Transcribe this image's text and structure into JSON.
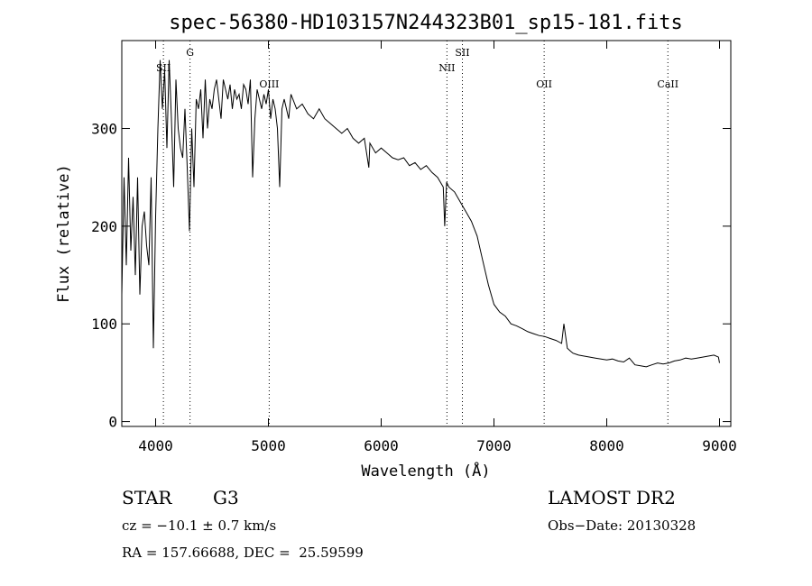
{
  "chart_data": {
    "type": "line",
    "title": "spec-56380-HD103157N244323B01_sp15-181.fits",
    "xlabel": "Wavelength (Å)",
    "ylabel": "Flux (relative)",
    "xlim": [
      3700,
      9100
    ],
    "ylim": [
      -5,
      390
    ],
    "xticks": [
      4000,
      5000,
      6000,
      7000,
      8000,
      9000
    ],
    "yticks": [
      0,
      100,
      200,
      300
    ],
    "grid": false,
    "series": [
      {
        "x": [
          3700,
          3720,
          3740,
          3760,
          3780,
          3800,
          3820,
          3840,
          3860,
          3880,
          3900,
          3920,
          3940,
          3960,
          3980,
          4000,
          4020,
          4040,
          4060,
          4080,
          4100,
          4120,
          4140,
          4160,
          4180,
          4200,
          4220,
          4240,
          4260,
          4280,
          4300,
          4320,
          4340,
          4360,
          4380,
          4400,
          4420,
          4440,
          4460,
          4480,
          4500,
          4520,
          4540,
          4560,
          4580,
          4600,
          4620,
          4640,
          4660,
          4680,
          4700,
          4720,
          4740,
          4760,
          4780,
          4800,
          4820,
          4840,
          4860,
          4880,
          4900,
          4920,
          4940,
          4960,
          4980,
          5000,
          5020,
          5040,
          5060,
          5080,
          5100,
          5120,
          5140,
          5160,
          5180,
          5200,
          5250,
          5300,
          5350,
          5400,
          5450,
          5500,
          5550,
          5600,
          5650,
          5700,
          5750,
          5800,
          5850,
          5890,
          5900,
          5950,
          6000,
          6050,
          6100,
          6150,
          6200,
          6250,
          6300,
          6350,
          6400,
          6450,
          6500,
          6550,
          6563,
          6580,
          6600,
          6650,
          6700,
          6750,
          6800,
          6850,
          6900,
          6950,
          7000,
          7050,
          7100,
          7150,
          7200,
          7250,
          7300,
          7350,
          7400,
          7450,
          7500,
          7550,
          7600,
          7620,
          7650,
          7680,
          7700,
          7750,
          7800,
          7850,
          7900,
          7950,
          8000,
          8050,
          8100,
          8150,
          8200,
          8250,
          8300,
          8350,
          8400,
          8450,
          8500,
          8550,
          8600,
          8650,
          8700,
          8750,
          8800,
          8850,
          8900,
          8950,
          8990,
          9000
        ],
        "y": [
          130,
          250,
          160,
          270,
          175,
          230,
          150,
          250,
          130,
          200,
          215,
          180,
          160,
          250,
          75,
          210,
          300,
          370,
          320,
          360,
          280,
          370,
          310,
          240,
          350,
          300,
          280,
          270,
          320,
          260,
          195,
          300,
          240,
          330,
          320,
          340,
          290,
          350,
          300,
          330,
          320,
          340,
          350,
          330,
          310,
          350,
          340,
          330,
          345,
          320,
          340,
          330,
          335,
          320,
          345,
          340,
          325,
          350,
          250,
          310,
          340,
          330,
          320,
          335,
          325,
          340,
          310,
          330,
          320,
          300,
          240,
          320,
          330,
          320,
          310,
          335,
          320,
          325,
          315,
          310,
          320,
          310,
          305,
          300,
          295,
          300,
          290,
          285,
          290,
          260,
          285,
          275,
          280,
          275,
          270,
          268,
          270,
          262,
          265,
          258,
          262,
          255,
          250,
          240,
          200,
          245,
          240,
          235,
          225,
          215,
          205,
          190,
          165,
          140,
          120,
          112,
          108,
          100,
          98,
          95,
          92,
          90,
          88,
          87,
          85,
          83,
          80,
          100,
          75,
          72,
          70,
          68,
          67,
          66,
          65,
          64,
          63,
          64,
          62,
          61,
          65,
          58,
          57,
          56,
          58,
          60,
          59,
          60,
          62,
          63,
          65,
          64,
          65,
          66,
          67,
          68,
          66,
          60
        ]
      }
    ],
    "annotations": [
      {
        "label": "SII",
        "x": 4069
      },
      {
        "label": "G",
        "x": 4305
      },
      {
        "label": "OIII",
        "x": 5007
      },
      {
        "label": "NII",
        "x": 6583
      },
      {
        "label": "SII",
        "x": 6720
      },
      {
        "label": "OII",
        "x": 7445
      },
      {
        "label": "CaII",
        "x": 8542
      }
    ],
    "reference_lines_x": [
      4069,
      4305,
      5007,
      6583,
      6720,
      7445,
      8542
    ]
  },
  "info": {
    "class_label": "STAR",
    "subclass": "G3",
    "survey": "LAMOST DR2",
    "cz": "cz = −10.1 ± 0.7 km/s",
    "obs_date": "Obs−Date: 20130328",
    "coords": "RA = 157.66688, DEC =  25.59599"
  }
}
